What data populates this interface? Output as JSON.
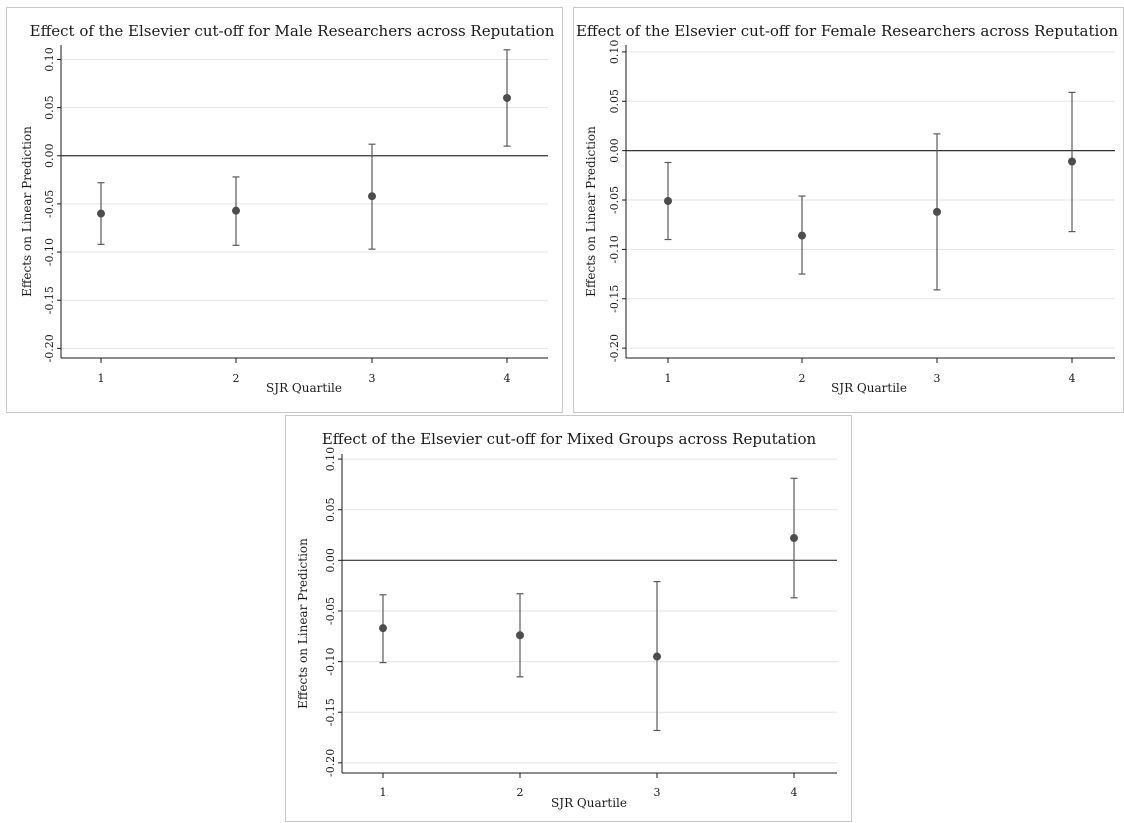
{
  "chart_data": [
    {
      "type": "scatter",
      "title": "Effect of the Elsevier cut-off for Male Researchers across Reputation",
      "xlabel": "SJR Quartile",
      "ylabel": "Effects on Linear Prediction",
      "categories": [
        "1",
        "2",
        "3",
        "4"
      ],
      "yticks": [
        "-0.20",
        "-0.15",
        "-0.10",
        "-0.05",
        "0.00",
        "0.05",
        "0.10"
      ],
      "ylim": [
        -0.21,
        0.115
      ],
      "points": [
        {
          "x": "1",
          "y": -0.06,
          "ci_low": -0.092,
          "ci_high": -0.028
        },
        {
          "x": "2",
          "y": -0.057,
          "ci_low": -0.093,
          "ci_high": -0.022
        },
        {
          "x": "3",
          "y": -0.042,
          "ci_low": -0.097,
          "ci_high": 0.012
        },
        {
          "x": "4",
          "y": 0.06,
          "ci_low": 0.01,
          "ci_high": 0.11
        }
      ],
      "reference_line": 0,
      "grid": true,
      "colors": {
        "marker": "#4d4d4d",
        "ci": "#5a5a5a",
        "grid": "#e3e3e3",
        "axis": "#1a1a1a"
      }
    },
    {
      "type": "scatter",
      "title": "Effect of the Elsevier cut-off for Female Researchers across Reputation",
      "xlabel": "SJR Quartile",
      "ylabel": "Effects on Linear Prediction",
      "categories": [
        "1",
        "2",
        "3",
        "4"
      ],
      "yticks": [
        "-0.20",
        "-0.15",
        "-0.10",
        "-0.05",
        "0.00",
        "0.05",
        "0.10"
      ],
      "ylim": [
        -0.21,
        0.107
      ],
      "points": [
        {
          "x": "1",
          "y": -0.051,
          "ci_low": -0.09,
          "ci_high": -0.012
        },
        {
          "x": "2",
          "y": -0.086,
          "ci_low": -0.125,
          "ci_high": -0.046
        },
        {
          "x": "3",
          "y": -0.062,
          "ci_low": -0.141,
          "ci_high": 0.017
        },
        {
          "x": "4",
          "y": -0.011,
          "ci_low": -0.082,
          "ci_high": 0.059
        }
      ],
      "reference_line": 0,
      "grid": true,
      "colors": {
        "marker": "#4d4d4d",
        "ci": "#5a5a5a",
        "grid": "#e3e3e3",
        "axis": "#1a1a1a"
      }
    },
    {
      "type": "scatter",
      "title": "Effect of the Elsevier cut-off for Mixed Groups across Reputation",
      "xlabel": "SJR Quartile",
      "ylabel": "Effects on Linear Prediction",
      "categories": [
        "1",
        "2",
        "3",
        "4"
      ],
      "yticks": [
        "-0.20",
        "-0.15",
        "-0.10",
        "-0.05",
        "0.00",
        "0.05",
        "0.10"
      ],
      "ylim": [
        -0.21,
        0.105
      ],
      "points": [
        {
          "x": "1",
          "y": -0.067,
          "ci_low": -0.101,
          "ci_high": -0.034
        },
        {
          "x": "2",
          "y": -0.074,
          "ci_low": -0.115,
          "ci_high": -0.033
        },
        {
          "x": "3",
          "y": -0.095,
          "ci_low": -0.168,
          "ci_high": -0.021
        },
        {
          "x": "4",
          "y": 0.022,
          "ci_low": -0.037,
          "ci_high": 0.081
        }
      ],
      "reference_line": 0,
      "grid": true,
      "colors": {
        "marker": "#4d4d4d",
        "ci": "#5a5a5a",
        "grid": "#e3e3e3",
        "axis": "#1a1a1a"
      }
    }
  ]
}
